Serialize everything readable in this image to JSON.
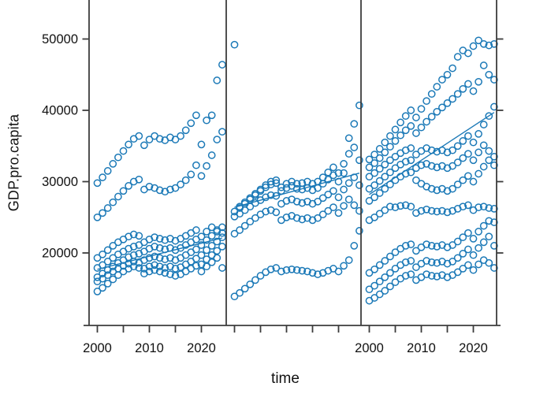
{
  "figure": {
    "ylabel": "GDP.pro.capita",
    "xlabel": "time"
  },
  "chart_data": {
    "type": "scatter",
    "title": "",
    "xlabel": "time",
    "ylabel": "GDP.pro.capita",
    "legend": "none",
    "grid": false,
    "layout": "three side-by-side lattice panels sharing the y axis",
    "point_style": "open circles",
    "point_color": "#1b79b7",
    "line_color": "#1b79b7",
    "axis_color": "#3c3c3c",
    "text_color": "#111111",
    "y_ticks": [
      20000,
      30000,
      40000,
      50000
    ],
    "y_tick_labels": [
      "20000",
      "30000",
      "40000",
      "50000"
    ],
    "y_range": [
      9800,
      55500
    ],
    "x_ticks_minor": [
      2000,
      2005,
      2010,
      2015,
      2020
    ],
    "x_tick_label_years": [
      2000,
      2010,
      2020
    ],
    "x_tick_labels": [
      "2000",
      "2010",
      "2020"
    ],
    "x_range_per_panel": [
      1998.4,
      2024.8
    ],
    "start_year": 2000,
    "panels": [
      {
        "name": "panel-1",
        "x_labels_shown": true,
        "regression": {
          "x": [
            2000,
            2024
          ],
          "y": [
            17700,
            22100
          ]
        },
        "series": [
          {
            "values": [
              29800,
              30600,
              31500,
              32500,
              33400,
              34300,
              35200,
              36000,
              36400,
              35100,
              35900,
              36400,
              36000,
              35800,
              36200,
              35900,
              36400,
              37200,
              38200,
              39300,
              35200,
              38600,
              39300,
              44200,
              46400
            ]
          },
          {
            "values": [
              25000,
              25600,
              26300,
              27100,
              27900,
              28700,
              29400,
              30000,
              30300,
              28900,
              29300,
              29100,
              28800,
              28600,
              28900,
              29100,
              29600,
              30200,
              31000,
              32300,
              30800,
              32200,
              33700,
              35900,
              37000
            ]
          },
          {
            "values": [
              19300,
              19800,
              20400,
              21000,
              21500,
              21900,
              22300,
              22600,
              22400,
              21500,
              21900,
              22200,
              22000,
              21800,
              22000,
              21700,
              22000,
              22400,
              22800,
              23200,
              22300,
              23000,
              23600,
              23200,
              22800
            ]
          },
          {
            "values": [
              17900,
              18300,
              18800,
              19300,
              19800,
              20200,
              20600,
              20900,
              21100,
              20200,
              20600,
              20900,
              20700,
              20500,
              20700,
              20400,
              20700,
              21100,
              21500,
              21900,
              21100,
              21800,
              22400,
              23000,
              23600
            ]
          },
          {
            "values": [
              16600,
              17100,
              17600,
              18100,
              18600,
              19000,
              19400,
              19700,
              19900,
              19000,
              19300,
              19500,
              19300,
              19100,
              19300,
              19000,
              19300,
              19700,
              20100,
              20500,
              19700,
              20400,
              21000,
              21600,
              22200
            ]
          },
          {
            "values": [
              16000,
              16400,
              16900,
              17400,
              17800,
              18200,
              18500,
              18800,
              18600,
              17800,
              18100,
              18300,
              18100,
              17900,
              18100,
              17800,
              18000,
              18400,
              18800,
              19200,
              18400,
              19100,
              19700,
              20300,
              20900
            ]
          },
          {
            "values": [
              14600,
              15100,
              15700,
              16300,
              16900,
              17400,
              17800,
              18100,
              17900,
              17100,
              17400,
              17600,
              17400,
              17200,
              17000,
              16800,
              17000,
              17400,
              17800,
              18200,
              17400,
              18100,
              18700,
              19300,
              17900
            ]
          }
        ]
      },
      {
        "name": "panel-2",
        "x_labels_shown": false,
        "regression": {
          "x": [
            2000,
            2024
          ],
          "y": [
            26400,
            31200
          ]
        },
        "series": [
          {
            "values": [
              49200,
              26500,
              27100,
              27700,
              28300,
              28900,
              29500,
              30000,
              30200,
              29200,
              29700,
              30000,
              29700,
              29800,
              30000,
              29700,
              30000,
              30600,
              31300,
              32000,
              31200,
              32500,
              36100,
              38100,
              40700
            ]
          },
          {
            "values": [
              25800,
              26300,
              26900,
              27500,
              28100,
              28700,
              29200,
              29600,
              29800,
              28700,
              29100,
              29400,
              29000,
              28900,
              29100,
              28800,
              29100,
              29700,
              30300,
              30900,
              30000,
              31200,
              33900,
              34800,
              33000
            ]
          },
          {
            "values": [
              25100,
              25500,
              26000,
              26500,
              27000,
              27400,
              27800,
              28100,
              28000,
              26900,
              27300,
              27500,
              27200,
              27000,
              27200,
              26900,
              27200,
              27700,
              28200,
              28700,
              27800,
              28900,
              29800,
              30600,
              29500
            ]
          },
          {
            "values": [
              22700,
              23200,
              23800,
              24400,
              24900,
              25400,
              25800,
              26000,
              25700,
              24600,
              25000,
              25200,
              24900,
              24700,
              24900,
              24600,
              24900,
              25400,
              25900,
              26400,
              25600,
              26600,
              27500,
              26700,
              25900
            ]
          },
          {
            "values": [
              13900,
              14400,
              15000,
              15600,
              16200,
              16800,
              17300,
              17700,
              17900,
              17400,
              17600,
              17700,
              17600,
              17500,
              17400,
              17200,
              17000,
              17200,
              17500,
              17800,
              17400,
              18200,
              19000,
              21000,
              23100
            ]
          }
        ]
      },
      {
        "name": "panel-3",
        "x_labels_shown": true,
        "regression": {
          "x": [
            2000,
            2024
          ],
          "y": [
            28200,
            39700
          ]
        },
        "series": [
          {
            "values": [
              33100,
              33800,
              34600,
              35500,
              36400,
              37300,
              38300,
              39200,
              40000,
              39000,
              40200,
              41300,
              42300,
              43300,
              44300,
              45000,
              45900,
              47500,
              48400,
              48000,
              49000,
              49800,
              49300,
              49100,
              49300
            ]
          },
          {
            "values": [
              32000,
              32600,
              33300,
              34100,
              34900,
              35700,
              36500,
              37200,
              37800,
              36800,
              37600,
              38400,
              39100,
              39800,
              40400,
              41000,
              41600,
              42300,
              43000,
              43700,
              42700,
              44000,
              46300,
              45000,
              44300
            ]
          },
          {
            "values": [
              30700,
              31200,
              31800,
              32400,
              33000,
              33500,
              34000,
              34400,
              34700,
              33800,
              34300,
              34700,
              34400,
              34200,
              34400,
              34100,
              34400,
              35000,
              35700,
              36400,
              35500,
              36700,
              38000,
              39200,
              40500
            ]
          },
          {
            "values": [
              29000,
              29500,
              30100,
              30700,
              31300,
              31900,
              32400,
              32800,
              33000,
              31900,
              32300,
              32500,
              32200,
              32000,
              32200,
              31900,
              32200,
              32700,
              33300,
              33900,
              33000,
              34100,
              35100,
              34300,
              33500
            ]
          },
          {
            "values": [
              27300,
              27800,
              28400,
              29000,
              29600,
              30200,
              30700,
              31100,
              31300,
              30200,
              29700,
              29300,
              29000,
              28800,
              29000,
              28700,
              29000,
              29600,
              30200,
              30800,
              30000,
              31100,
              32100,
              33000,
              32300
            ]
          },
          {
            "values": [
              24600,
              25000,
              25500,
              26000,
              26500,
              26400,
              26600,
              26700,
              26500,
              25600,
              25900,
              26100,
              25900,
              25800,
              25900,
              25700,
              25900,
              26200,
              26500,
              26700,
              26000,
              26400,
              26500,
              26300,
              26200
            ]
          },
          {
            "values": [
              17200,
              17700,
              18300,
              18900,
              19500,
              20100,
              20600,
              21000,
              21200,
              20300,
              20800,
              21200,
              21000,
              20900,
              21100,
              20800,
              21100,
              21600,
              22200,
              22800,
              22000,
              23000,
              23800,
              24500,
              24300
            ]
          },
          {
            "values": [
              14900,
              15400,
              16000,
              16600,
              17200,
              17800,
              18300,
              18700,
              18900,
              18000,
              18500,
              18900,
              18700,
              18600,
              18800,
              18500,
              18800,
              19300,
              19900,
              20500,
              19700,
              20700,
              21500,
              22300,
              21000
            ]
          },
          {
            "values": [
              13300,
              13700,
              14200,
              14700,
              15300,
              15900,
              16400,
              16800,
              17000,
              16200,
              16600,
              17000,
              16800,
              16700,
              16900,
              16600,
              16900,
              17300,
              17800,
              18300,
              17600,
              18400,
              19000,
              18600,
              17900
            ]
          }
        ]
      }
    ]
  }
}
